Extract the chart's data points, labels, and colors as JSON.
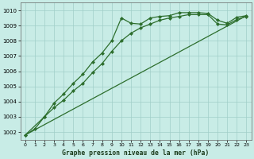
{
  "title": "Graphe pression niveau de la mer (hPa)",
  "bg_color": "#c8ece6",
  "grid_color": "#a0cfc8",
  "line_color": "#2d6e2d",
  "xlim": [
    -0.5,
    23.5
  ],
  "ylim": [
    1001.5,
    1010.5
  ],
  "yticks": [
    1002,
    1003,
    1004,
    1005,
    1006,
    1007,
    1008,
    1009,
    1010
  ],
  "xticks": [
    0,
    1,
    2,
    3,
    4,
    5,
    6,
    7,
    8,
    9,
    10,
    11,
    12,
    13,
    14,
    15,
    16,
    17,
    18,
    19,
    20,
    21,
    22,
    23
  ],
  "line1_x": [
    0,
    1,
    2,
    3,
    4,
    5,
    6,
    7,
    8,
    9,
    10,
    11,
    12,
    13,
    14,
    15,
    16,
    17,
    18,
    19,
    20,
    21,
    22,
    23
  ],
  "line1_y": [
    1001.8,
    1002.2,
    1003.0,
    1003.9,
    1004.5,
    1005.2,
    1005.8,
    1006.6,
    1007.2,
    1008.0,
    1009.5,
    1009.15,
    1009.1,
    1009.5,
    1009.6,
    1009.65,
    1009.85,
    1009.85,
    1009.85,
    1009.8,
    1009.35,
    1009.15,
    1009.55,
    1009.65
  ],
  "line2_x": [
    0,
    2,
    3,
    4,
    5,
    6,
    7,
    8,
    9,
    10,
    11,
    12,
    13,
    14,
    15,
    16,
    17,
    18,
    19,
    20,
    21,
    22,
    23
  ],
  "line2_y": [
    1001.8,
    1003.0,
    1003.6,
    1004.1,
    1004.7,
    1005.2,
    1005.9,
    1006.5,
    1007.3,
    1008.0,
    1008.5,
    1008.85,
    1009.1,
    1009.35,
    1009.5,
    1009.6,
    1009.72,
    1009.72,
    1009.72,
    1009.1,
    1009.05,
    1009.4,
    1009.6
  ],
  "line3_x": [
    0,
    23
  ],
  "line3_y": [
    1001.8,
    1009.65
  ]
}
